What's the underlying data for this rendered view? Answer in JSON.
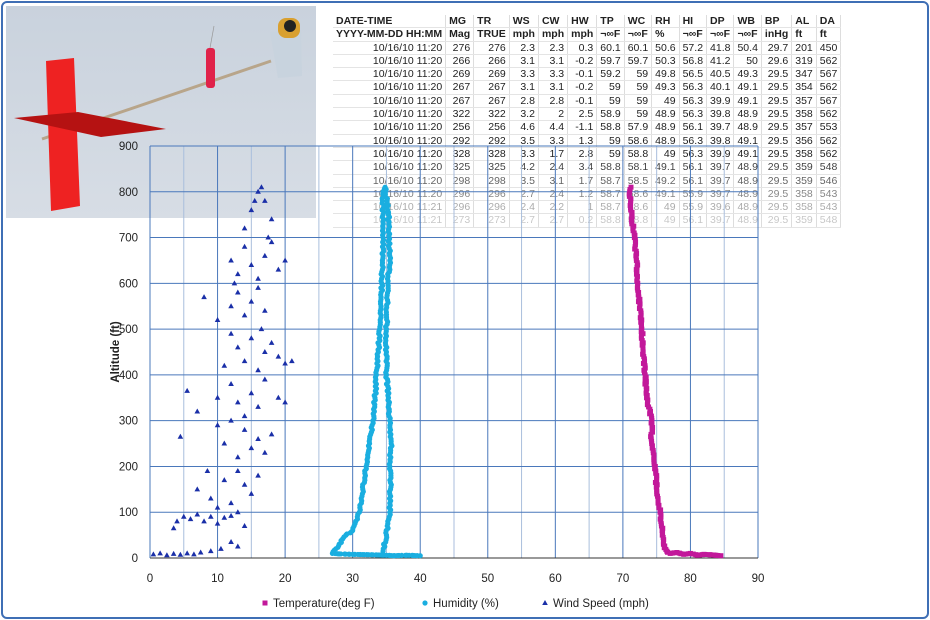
{
  "table": {
    "headers": [
      "DATE-TIME",
      "MG",
      "TR",
      "WS",
      "CW",
      "HW",
      "TP",
      "WC",
      "RH",
      "HI",
      "DP",
      "WB",
      "BP",
      "AL",
      "DA"
    ],
    "units": [
      "YYYY-MM-DD HH:MM",
      "Mag",
      "TRUE",
      "mph",
      "mph",
      "mph",
      "¬∞F",
      "¬∞F",
      "%",
      "¬∞F",
      "¬∞F",
      "¬∞F",
      "inHg",
      "ft",
      "ft"
    ],
    "rows": [
      [
        "10/16/10 11:20",
        "276",
        "276",
        "2.3",
        "2.3",
        "0.3",
        "60.1",
        "60.1",
        "50.6",
        "57.2",
        "41.8",
        "50.4",
        "29.7",
        "201",
        "450"
      ],
      [
        "10/16/10 11:20",
        "266",
        "266",
        "3.1",
        "3.1",
        "-0.2",
        "59.7",
        "59.7",
        "50.3",
        "56.8",
        "41.2",
        "50",
        "29.6",
        "319",
        "562"
      ],
      [
        "10/16/10 11:20",
        "269",
        "269",
        "3.3",
        "3.3",
        "-0.1",
        "59.2",
        "59",
        "49.8",
        "56.5",
        "40.5",
        "49.3",
        "29.5",
        "347",
        "567"
      ],
      [
        "10/16/10 11:20",
        "267",
        "267",
        "3.1",
        "3.1",
        "-0.2",
        "59",
        "59",
        "49.3",
        "56.3",
        "40.1",
        "49.1",
        "29.5",
        "354",
        "562"
      ],
      [
        "10/16/10 11:20",
        "267",
        "267",
        "2.8",
        "2.8",
        "-0.1",
        "59",
        "59",
        "49",
        "56.3",
        "39.9",
        "49.1",
        "29.5",
        "357",
        "567"
      ],
      [
        "10/16/10 11:20",
        "322",
        "322",
        "3.2",
        "2",
        "2.5",
        "58.9",
        "59",
        "48.9",
        "56.3",
        "39.8",
        "48.9",
        "29.5",
        "358",
        "562"
      ],
      [
        "10/16/10 11:20",
        "256",
        "256",
        "4.6",
        "4.4",
        "-1.1",
        "58.8",
        "57.9",
        "48.9",
        "56.1",
        "39.7",
        "48.9",
        "29.5",
        "357",
        "553"
      ],
      [
        "10/16/10 11:20",
        "292",
        "292",
        "3.5",
        "3.3",
        "1.3",
        "59",
        "58.6",
        "48.9",
        "56.3",
        "39.8",
        "49.1",
        "29.5",
        "356",
        "562"
      ],
      [
        "10/16/10 11:20",
        "328",
        "328",
        "3.3",
        "1.7",
        "2.8",
        "59",
        "58.8",
        "49",
        "56.3",
        "39.9",
        "49.1",
        "29.5",
        "358",
        "562"
      ],
      [
        "10/16/10 11:20",
        "325",
        "325",
        "4.2",
        "2.4",
        "3.4",
        "58.8",
        "58.1",
        "49.1",
        "56.1",
        "39.7",
        "48.9",
        "29.5",
        "359",
        "548"
      ],
      [
        "10/16/10 11:20",
        "298",
        "298",
        "3.5",
        "3.1",
        "1.7",
        "58.7",
        "58.5",
        "49.2",
        "56.1",
        "39.7",
        "48.9",
        "29.5",
        "359",
        "546"
      ],
      [
        "10/16/10 11:20",
        "296",
        "296",
        "2.7",
        "2.4",
        "1.2",
        "58.7",
        "58.6",
        "49.1",
        "55.9",
        "39.7",
        "48.9",
        "29.5",
        "358",
        "543"
      ],
      [
        "10/16/10 11:21",
        "296",
        "296",
        "2.4",
        "2.2",
        "1",
        "58.7",
        "58.6",
        "49",
        "55.9",
        "39.6",
        "48.9",
        "29.5",
        "358",
        "543"
      ],
      [
        "10/16/10 11:21",
        "273",
        "273",
        "2.7",
        "2.7",
        "0.2",
        "58.8",
        "58.8",
        "49",
        "56.1",
        "39.7",
        "48.9",
        "29.5",
        "359",
        "548"
      ]
    ]
  },
  "chart_data": {
    "type": "scatter",
    "xlabel": "",
    "ylabel": "Altitude (ft)",
    "xlim": [
      0,
      90
    ],
    "ylim": [
      0,
      900
    ],
    "x_ticks": [
      "0",
      "10",
      "20",
      "30",
      "40",
      "50",
      "60",
      "70",
      "80",
      "90"
    ],
    "y_ticks": [
      "0",
      "100",
      "200",
      "300",
      "400",
      "500",
      "600",
      "700",
      "800",
      "900"
    ],
    "grid": true,
    "legend_position": "bottom",
    "series": [
      {
        "name": "Temperature(deg F)",
        "color": "#c2189a",
        "marker": "square",
        "points": [
          [
            84.5,
            5
          ],
          [
            83,
            7
          ],
          [
            82,
            8
          ],
          [
            81,
            6
          ],
          [
            80,
            10
          ],
          [
            79,
            8
          ],
          [
            78,
            12
          ],
          [
            77,
            10
          ],
          [
            76.5,
            15
          ],
          [
            76,
            30
          ],
          [
            75.8,
            60
          ],
          [
            75.5,
            100
          ],
          [
            75.2,
            130
          ],
          [
            75,
            150
          ],
          [
            74.8,
            200
          ],
          [
            74.5,
            230
          ],
          [
            74.2,
            260
          ],
          [
            74.3,
            300
          ],
          [
            73.8,
            330
          ],
          [
            73.5,
            350
          ],
          [
            73.3,
            400
          ],
          [
            73,
            450
          ],
          [
            72.8,
            500
          ],
          [
            72.5,
            550
          ],
          [
            72.2,
            600
          ],
          [
            72,
            650
          ],
          [
            71.7,
            700
          ],
          [
            71.3,
            750
          ],
          [
            71,
            800
          ],
          [
            71.2,
            810
          ]
        ]
      },
      {
        "name": "Humidity (%)",
        "color": "#1aaee0",
        "marker": "circle",
        "points": [
          [
            40,
            5
          ],
          [
            38,
            6
          ],
          [
            36,
            5
          ],
          [
            35,
            6
          ],
          [
            33,
            7
          ],
          [
            30,
            8
          ],
          [
            28,
            9
          ],
          [
            27,
            10
          ],
          [
            27.5,
            20
          ],
          [
            28,
            30
          ],
          [
            29,
            50
          ],
          [
            30,
            60
          ],
          [
            31,
            100
          ],
          [
            31.5,
            150
          ],
          [
            32,
            200
          ],
          [
            32.5,
            250
          ],
          [
            33,
            300
          ],
          [
            33.3,
            350
          ],
          [
            33.5,
            400
          ],
          [
            33.8,
            450
          ],
          [
            34,
            500
          ],
          [
            34.2,
            550
          ],
          [
            34.3,
            600
          ],
          [
            34.4,
            650
          ],
          [
            34.5,
            700
          ],
          [
            34.5,
            750
          ],
          [
            34.5,
            800
          ],
          [
            34.8,
            810
          ],
          [
            35.3,
            750
          ],
          [
            35.5,
            650
          ],
          [
            35.2,
            600
          ],
          [
            35,
            500
          ],
          [
            35,
            450
          ],
          [
            35,
            400
          ],
          [
            35.3,
            350
          ],
          [
            35.5,
            300
          ],
          [
            35.7,
            250
          ],
          [
            35.5,
            200
          ],
          [
            35.6,
            150
          ],
          [
            35.5,
            100
          ],
          [
            35.2,
            80
          ],
          [
            35,
            50
          ],
          [
            34.5,
            15
          ]
        ]
      },
      {
        "name": "Wind Speed (mph)",
        "color": "#1a2fa8",
        "marker": "triangle",
        "points": [
          [
            0.5,
            8
          ],
          [
            1.5,
            10
          ],
          [
            2.5,
            6
          ],
          [
            3.5,
            9
          ],
          [
            4.5,
            7
          ],
          [
            5.5,
            10
          ],
          [
            6.5,
            8
          ],
          [
            7.5,
            12
          ],
          [
            9,
            15
          ],
          [
            10.5,
            20
          ],
          [
            12,
            35
          ],
          [
            13,
            25
          ],
          [
            4,
            80
          ],
          [
            5,
            90
          ],
          [
            6,
            85
          ],
          [
            7,
            95
          ],
          [
            8,
            80
          ],
          [
            9,
            90
          ],
          [
            10,
            75
          ],
          [
            11,
            88
          ],
          [
            12,
            92
          ],
          [
            13,
            100
          ],
          [
            3.5,
            65
          ],
          [
            14,
            70
          ],
          [
            7,
            150
          ],
          [
            9,
            130
          ],
          [
            11,
            170
          ],
          [
            12,
            120
          ],
          [
            13,
            190
          ],
          [
            14,
            160
          ],
          [
            15,
            140
          ],
          [
            10,
            110
          ],
          [
            16,
            180
          ],
          [
            8.5,
            190
          ],
          [
            11,
            250
          ],
          [
            13,
            220
          ],
          [
            14,
            280
          ],
          [
            15,
            240
          ],
          [
            16,
            260
          ],
          [
            12,
            300
          ],
          [
            17,
            230
          ],
          [
            18,
            270
          ],
          [
            4.5,
            265
          ],
          [
            10,
            290
          ],
          [
            7,
            320
          ],
          [
            10,
            350
          ],
          [
            12,
            380
          ],
          [
            13,
            340
          ],
          [
            15,
            360
          ],
          [
            16,
            330
          ],
          [
            17,
            390
          ],
          [
            19,
            350
          ],
          [
            20,
            340
          ],
          [
            5.5,
            365
          ],
          [
            14,
            310
          ],
          [
            11,
            420
          ],
          [
            13,
            460
          ],
          [
            14,
            430
          ],
          [
            15,
            480
          ],
          [
            16,
            410
          ],
          [
            17,
            450
          ],
          [
            18,
            470
          ],
          [
            19,
            440
          ],
          [
            20,
            425
          ],
          [
            21,
            430
          ],
          [
            12,
            490
          ],
          [
            16.5,
            500
          ],
          [
            8,
            570
          ],
          [
            10,
            520
          ],
          [
            12,
            550
          ],
          [
            13,
            580
          ],
          [
            14,
            530
          ],
          [
            15,
            560
          ],
          [
            16,
            590
          ],
          [
            17,
            540
          ],
          [
            12.5,
            600
          ],
          [
            12,
            650
          ],
          [
            13,
            620
          ],
          [
            14,
            680
          ],
          [
            15,
            640
          ],
          [
            16,
            610
          ],
          [
            17,
            660
          ],
          [
            18,
            690
          ],
          [
            19,
            630
          ],
          [
            20,
            650
          ],
          [
            14,
            720
          ],
          [
            15,
            760
          ],
          [
            16,
            800
          ],
          [
            17,
            780
          ],
          [
            18,
            740
          ],
          [
            16.5,
            810
          ],
          [
            15.5,
            780
          ],
          [
            17.5,
            700
          ]
        ]
      }
    ]
  }
}
